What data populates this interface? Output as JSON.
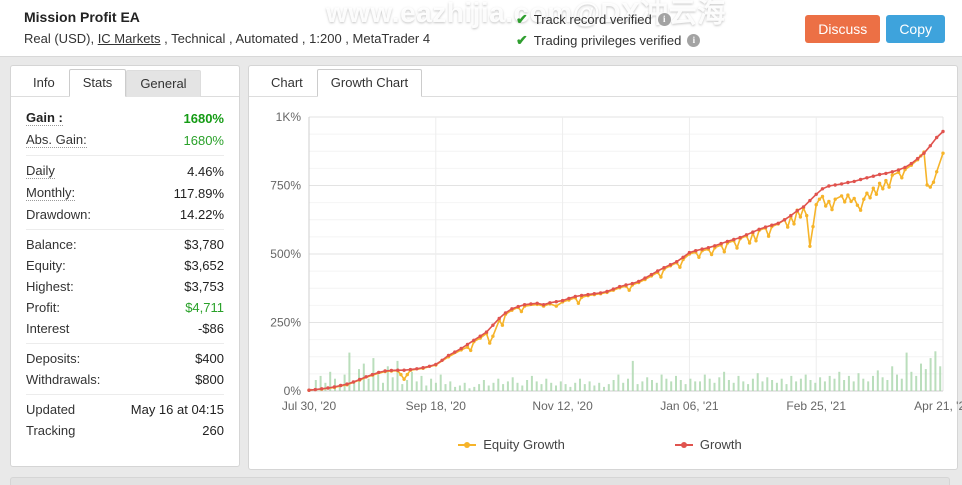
{
  "header": {
    "title": "Mission Profit EA",
    "subtitle": {
      "prefix": "Real (USD), ",
      "broker_link": "IC Markets",
      "suffix": " , Technical , Automated , 1:200 , MetaTrader 4"
    },
    "watermark": "www.eazhijia.com@DX冲云海",
    "verifications": [
      {
        "label": "Track record verified"
      },
      {
        "label": "Trading privileges verified"
      }
    ],
    "buttons": {
      "discuss": "Discuss",
      "copy": "Copy"
    }
  },
  "stats_panel": {
    "tabs": [
      {
        "label": "Info"
      },
      {
        "label": "Stats",
        "active": true
      },
      {
        "label": "General"
      }
    ],
    "groups": [
      {
        "rows": [
          {
            "label": "Gain :",
            "value": "1680%"
          },
          {
            "label": "Abs. Gain:",
            "value": "1680%"
          }
        ]
      },
      {
        "rows": [
          {
            "label": "Daily",
            "value": "4.46%"
          },
          {
            "label": "Monthly:",
            "value": "117.89%"
          },
          {
            "label": "Drawdown:",
            "value": "14.22%"
          }
        ]
      },
      {
        "rows": [
          {
            "label": "Balance:",
            "value": "$3,780"
          },
          {
            "label": "Equity:",
            "value": "$3,652"
          },
          {
            "label": "Highest:",
            "value": "$3,753"
          },
          {
            "label": "Profit:",
            "value": "$4,711"
          },
          {
            "label": "Interest",
            "value": "-$86"
          }
        ]
      },
      {
        "rows": [
          {
            "label": "Deposits:",
            "value": "$400"
          },
          {
            "label": "Withdrawals:",
            "value": "$800"
          }
        ]
      },
      {
        "rows": [
          {
            "label": "Updated",
            "value": "May 16 at 04:15"
          },
          {
            "label": "Tracking",
            "value": "260"
          }
        ]
      }
    ]
  },
  "chart_panel": {
    "tabs": [
      {
        "label": "Chart"
      },
      {
        "label": "Growth Chart",
        "active": true
      }
    ]
  },
  "chart_data": {
    "type": "line",
    "title": "Growth Chart",
    "x_unit": "fraction of plot width (Jul 30 '20 = 0 to Apr 21 '21 = 1)",
    "y_unit": "percent growth",
    "ylim": [
      0,
      1000
    ],
    "grid": true,
    "legend_position": "bottom-center",
    "y_ticks": [
      {
        "value": 0,
        "label": "0%"
      },
      {
        "value": 250,
        "label": "250%"
      },
      {
        "value": 500,
        "label": "500%"
      },
      {
        "value": 750,
        "label": "750%"
      },
      {
        "value": 1000,
        "label": "1K%"
      }
    ],
    "x_ticks": [
      "Jul 30, '20",
      "Sep 18, '20",
      "Nov 12, '20",
      "Jan 06, '21",
      "Feb 25, '21",
      "Apr 21, '21"
    ],
    "legend": [
      {
        "name": "Equity Growth",
        "color": "#f6b42a"
      },
      {
        "name": "Growth",
        "color": "#e0534e"
      }
    ],
    "series": [
      {
        "name": "Equity Growth",
        "color": "#f6b42a",
        "points": [
          [
            0,
            3
          ],
          [
            0.02,
            7
          ],
          [
            0.04,
            13
          ],
          [
            0.06,
            23
          ],
          [
            0.08,
            40
          ],
          [
            0.1,
            58
          ],
          [
            0.12,
            71
          ],
          [
            0.13,
            73
          ],
          [
            0.14,
            74
          ],
          [
            0.145,
            60
          ],
          [
            0.15,
            43
          ],
          [
            0.155,
            60
          ],
          [
            0.16,
            76
          ],
          [
            0.18,
            83
          ],
          [
            0.2,
            95
          ],
          [
            0.22,
            125
          ],
          [
            0.24,
            150
          ],
          [
            0.25,
            160
          ],
          [
            0.255,
            148
          ],
          [
            0.26,
            180
          ],
          [
            0.27,
            193
          ],
          [
            0.28,
            210
          ],
          [
            0.285,
            175
          ],
          [
            0.29,
            200
          ],
          [
            0.3,
            258
          ],
          [
            0.305,
            240
          ],
          [
            0.31,
            280
          ],
          [
            0.32,
            295
          ],
          [
            0.33,
            305
          ],
          [
            0.335,
            290
          ],
          [
            0.34,
            310
          ],
          [
            0.36,
            316
          ],
          [
            0.37,
            310
          ],
          [
            0.38,
            318
          ],
          [
            0.39,
            310
          ],
          [
            0.4,
            325
          ],
          [
            0.41,
            332
          ],
          [
            0.42,
            340
          ],
          [
            0.425,
            320
          ],
          [
            0.43,
            342
          ],
          [
            0.44,
            348
          ],
          [
            0.45,
            352
          ],
          [
            0.46,
            355
          ],
          [
            0.47,
            360
          ],
          [
            0.48,
            368
          ],
          [
            0.49,
            377
          ],
          [
            0.5,
            383
          ],
          [
            0.505,
            368
          ],
          [
            0.51,
            387
          ],
          [
            0.52,
            396
          ],
          [
            0.53,
            407
          ],
          [
            0.54,
            420
          ],
          [
            0.55,
            433
          ],
          [
            0.555,
            416
          ],
          [
            0.56,
            445
          ],
          [
            0.57,
            457
          ],
          [
            0.58,
            468
          ],
          [
            0.585,
            452
          ],
          [
            0.59,
            480
          ],
          [
            0.6,
            500
          ],
          [
            0.61,
            507
          ],
          [
            0.615,
            488
          ],
          [
            0.62,
            512
          ],
          [
            0.63,
            517
          ],
          [
            0.635,
            498
          ],
          [
            0.64,
            523
          ],
          [
            0.65,
            533
          ],
          [
            0.655,
            508
          ],
          [
            0.66,
            540
          ],
          [
            0.67,
            548
          ],
          [
            0.675,
            522
          ],
          [
            0.68,
            556
          ],
          [
            0.69,
            566
          ],
          [
            0.695,
            540
          ],
          [
            0.7,
            576
          ],
          [
            0.705,
            548
          ],
          [
            0.71,
            586
          ],
          [
            0.72,
            595
          ],
          [
            0.725,
            565
          ],
          [
            0.73,
            600
          ],
          [
            0.74,
            610
          ],
          [
            0.75,
            625
          ],
          [
            0.755,
            598
          ],
          [
            0.76,
            636
          ],
          [
            0.765,
            610
          ],
          [
            0.77,
            660
          ],
          [
            0.775,
            635
          ],
          [
            0.78,
            668
          ],
          [
            0.785,
            640
          ],
          [
            0.79,
            528
          ],
          [
            0.795,
            600
          ],
          [
            0.8,
            680
          ],
          [
            0.805,
            700
          ],
          [
            0.81,
            710
          ],
          [
            0.815,
            675
          ],
          [
            0.82,
            692
          ],
          [
            0.825,
            662
          ],
          [
            0.83,
            700
          ],
          [
            0.84,
            712
          ],
          [
            0.845,
            690
          ],
          [
            0.85,
            715
          ],
          [
            0.855,
            692
          ],
          [
            0.86,
            703
          ],
          [
            0.865,
            678
          ],
          [
            0.87,
            660
          ],
          [
            0.875,
            700
          ],
          [
            0.88,
            722
          ],
          [
            0.885,
            705
          ],
          [
            0.89,
            740
          ],
          [
            0.895,
            718
          ],
          [
            0.9,
            758
          ],
          [
            0.905,
            738
          ],
          [
            0.91,
            768
          ],
          [
            0.915,
            744
          ],
          [
            0.92,
            788
          ],
          [
            0.93,
            798
          ],
          [
            0.935,
            778
          ],
          [
            0.94,
            808
          ],
          [
            0.95,
            824
          ],
          [
            0.96,
            844
          ],
          [
            0.965,
            858
          ],
          [
            0.97,
            872
          ],
          [
            0.975,
            752
          ],
          [
            0.98,
            744
          ],
          [
            0.985,
            762
          ],
          [
            0.99,
            800
          ],
          [
            1,
            868
          ]
        ]
      },
      {
        "name": "Growth",
        "color": "#e0534e",
        "points": [
          [
            0,
            3
          ],
          [
            0.01,
            5
          ],
          [
            0.02,
            8
          ],
          [
            0.03,
            11
          ],
          [
            0.04,
            15
          ],
          [
            0.05,
            20
          ],
          [
            0.06,
            25
          ],
          [
            0.07,
            33
          ],
          [
            0.08,
            42
          ],
          [
            0.09,
            52
          ],
          [
            0.1,
            60
          ],
          [
            0.11,
            68
          ],
          [
            0.12,
            73
          ],
          [
            0.13,
            75
          ],
          [
            0.14,
            76
          ],
          [
            0.15,
            76
          ],
          [
            0.16,
            78
          ],
          [
            0.17,
            81
          ],
          [
            0.18,
            85
          ],
          [
            0.19,
            90
          ],
          [
            0.2,
            97
          ],
          [
            0.21,
            112
          ],
          [
            0.22,
            130
          ],
          [
            0.23,
            142
          ],
          [
            0.24,
            155
          ],
          [
            0.25,
            170
          ],
          [
            0.26,
            185
          ],
          [
            0.27,
            200
          ],
          [
            0.28,
            215
          ],
          [
            0.29,
            240
          ],
          [
            0.3,
            265
          ],
          [
            0.31,
            285
          ],
          [
            0.32,
            300
          ],
          [
            0.33,
            308
          ],
          [
            0.34,
            315
          ],
          [
            0.35,
            318
          ],
          [
            0.36,
            320
          ],
          [
            0.37,
            315
          ],
          [
            0.38,
            322
          ],
          [
            0.39,
            326
          ],
          [
            0.4,
            330
          ],
          [
            0.41,
            338
          ],
          [
            0.42,
            345
          ],
          [
            0.43,
            349
          ],
          [
            0.44,
            352
          ],
          [
            0.45,
            355
          ],
          [
            0.46,
            358
          ],
          [
            0.47,
            363
          ],
          [
            0.48,
            372
          ],
          [
            0.49,
            381
          ],
          [
            0.5,
            387
          ],
          [
            0.51,
            392
          ],
          [
            0.52,
            400
          ],
          [
            0.53,
            412
          ],
          [
            0.54,
            425
          ],
          [
            0.55,
            438
          ],
          [
            0.56,
            450
          ],
          [
            0.57,
            461
          ],
          [
            0.58,
            472
          ],
          [
            0.59,
            488
          ],
          [
            0.6,
            505
          ],
          [
            0.61,
            512
          ],
          [
            0.62,
            518
          ],
          [
            0.63,
            523
          ],
          [
            0.64,
            530
          ],
          [
            0.65,
            538
          ],
          [
            0.66,
            546
          ],
          [
            0.67,
            553
          ],
          [
            0.68,
            560
          ],
          [
            0.69,
            570
          ],
          [
            0.7,
            580
          ],
          [
            0.71,
            590
          ],
          [
            0.72,
            598
          ],
          [
            0.73,
            605
          ],
          [
            0.74,
            612
          ],
          [
            0.75,
            625
          ],
          [
            0.76,
            640
          ],
          [
            0.77,
            658
          ],
          [
            0.78,
            672
          ],
          [
            0.79,
            695
          ],
          [
            0.8,
            718
          ],
          [
            0.81,
            738
          ],
          [
            0.82,
            748
          ],
          [
            0.83,
            752
          ],
          [
            0.84,
            756
          ],
          [
            0.85,
            761
          ],
          [
            0.86,
            765
          ],
          [
            0.87,
            772
          ],
          [
            0.88,
            778
          ],
          [
            0.89,
            784
          ],
          [
            0.9,
            790
          ],
          [
            0.91,
            794
          ],
          [
            0.92,
            800
          ],
          [
            0.93,
            807
          ],
          [
            0.94,
            816
          ],
          [
            0.95,
            830
          ],
          [
            0.96,
            848
          ],
          [
            0.97,
            868
          ],
          [
            0.98,
            895
          ],
          [
            0.99,
            925
          ],
          [
            1,
            947
          ]
        ]
      }
    ],
    "volume_bars": {
      "name": "trade volume",
      "color": "#a9d6ab",
      "values": [
        8,
        40,
        55,
        30,
        70,
        45,
        25,
        60,
        140,
        35,
        80,
        100,
        45,
        120,
        60,
        30,
        90,
        50,
        110,
        25,
        40,
        70,
        35,
        55,
        20,
        45,
        30,
        60,
        25,
        35,
        15,
        20,
        30,
        10,
        15,
        25,
        40,
        20,
        30,
        45,
        25,
        35,
        50,
        30,
        20,
        40,
        55,
        35,
        25,
        45,
        30,
        20,
        35,
        25,
        15,
        30,
        45,
        25,
        35,
        20,
        30,
        15,
        25,
        40,
        60,
        30,
        45,
        110,
        25,
        35,
        50,
        40,
        30,
        60,
        45,
        35,
        55,
        40,
        25,
        45,
        35,
        35,
        60,
        45,
        30,
        50,
        70,
        40,
        30,
        55,
        35,
        25,
        45,
        65,
        35,
        50,
        40,
        30,
        45,
        25,
        55,
        35,
        45,
        60,
        40,
        30,
        50,
        35,
        55,
        45,
        70,
        40,
        55,
        35,
        65,
        45,
        35,
        55,
        75,
        50,
        40,
        90,
        60,
        45,
        140,
        70,
        55,
        100,
        80,
        120,
        145,
        90
      ]
    }
  }
}
